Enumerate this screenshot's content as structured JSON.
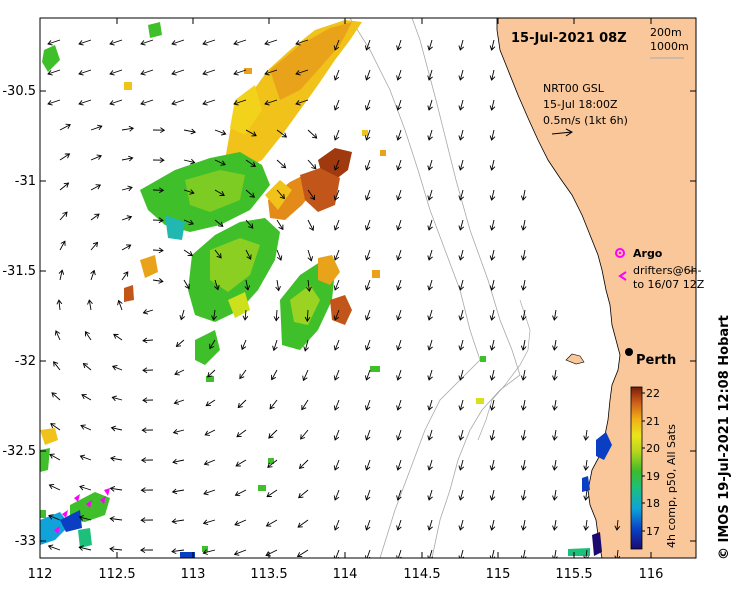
{
  "map": {
    "title": "15-Jul-2021 08Z",
    "legend_depth": [
      "200m",
      "1000m"
    ],
    "model": {
      "line1": "NRT00 GSL",
      "line2": "15-Jul 18:00Z",
      "line3": "0.5m/s (1kt 6h)"
    },
    "argo_label": "Argo",
    "drifters_line1": "drifters@6h-",
    "drifters_line2": "to 16/07 12Z",
    "city": "Perth",
    "credit": "© IMOS 19-Jul-2021 12:08 Hobart",
    "lon_ticks": [
      "112",
      "112.5",
      "113",
      "113.5",
      "114",
      "114.5",
      "115",
      "115.5",
      "116"
    ],
    "lat_ticks": [
      "-30.5",
      "-31",
      "-31.5",
      "-32",
      "-32.5",
      "-33"
    ],
    "colorbar": {
      "label": "4h comp, p50, All Sats",
      "ticks": [
        "22",
        "21",
        "20",
        "19",
        "18",
        "17"
      ],
      "range": [
        16.5,
        22.3
      ]
    },
    "colors": {
      "land": "#f9c79a",
      "argo": "#ff00ff",
      "background": "#ffffff"
    }
  }
}
